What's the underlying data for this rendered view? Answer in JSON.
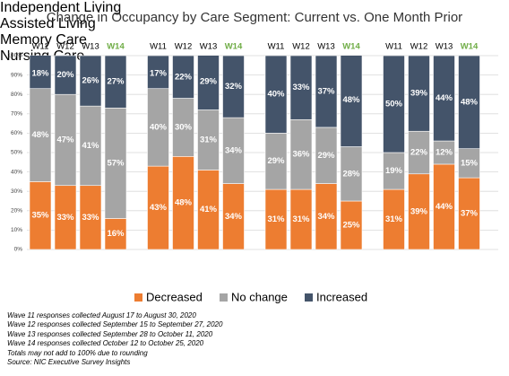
{
  "chart_data": {
    "type": "bar",
    "stacked": true,
    "title": "Change in Occupancy by Care Segment: Current vs. One Month Prior",
    "groups": [
      "Independent Living",
      "Assisted Living",
      "Memory Care",
      "Nursing Care"
    ],
    "categories": [
      "W11",
      "W12",
      "W13",
      "W14",
      "W11",
      "W12",
      "W13",
      "W14",
      "W11",
      "W12",
      "W13",
      "W14",
      "W11",
      "W12",
      "W13",
      "W14"
    ],
    "highlight_category": "W14",
    "highlight_color": "#70ad47",
    "series": [
      {
        "name": "Decreased",
        "color": "#ed7d31",
        "values": [
          35,
          33,
          33,
          16,
          43,
          48,
          41,
          34,
          31,
          31,
          34,
          25,
          31,
          39,
          44,
          37
        ],
        "value_labels": [
          "35%",
          "33%",
          "33%",
          "16%",
          "43%",
          "48%",
          "41%",
          "34%",
          "31%",
          "31%",
          "34%",
          "25%",
          "31%",
          "39%",
          "44%",
          "37%"
        ]
      },
      {
        "name": "No change",
        "color": "#a5a5a5",
        "values": [
          48,
          47,
          41,
          57,
          40,
          30,
          31,
          34,
          29,
          36,
          29,
          28,
          19,
          22,
          12,
          15
        ],
        "value_labels": [
          "48%",
          "47%",
          "41%",
          "57%",
          "40%",
          "30%",
          "31%",
          "34%",
          "29%",
          "36%",
          "29%",
          "28%",
          "19%",
          "22%",
          "12%",
          "15%"
        ]
      },
      {
        "name": "Increased",
        "color": "#44546a",
        "values": [
          18,
          20,
          26,
          27,
          17,
          22,
          29,
          32,
          40,
          33,
          37,
          48,
          50,
          39,
          44,
          48
        ],
        "value_labels": [
          "18%",
          "20%",
          "26%",
          "27%",
          "17%",
          "22%",
          "29%",
          "32%",
          "40%",
          "33%",
          "37%",
          "48%",
          "50%",
          "39%",
          "44%",
          "48%"
        ]
      }
    ],
    "ylim": [
      0,
      100
    ],
    "yticks": [
      {
        "value": 0,
        "label": "0%"
      },
      {
        "value": 10,
        "label": "10%"
      },
      {
        "value": 20,
        "label": "20%"
      },
      {
        "value": 30,
        "label": "30%"
      },
      {
        "value": 40,
        "label": "40%"
      },
      {
        "value": 50,
        "label": "50%"
      },
      {
        "value": 60,
        "label": "60%"
      },
      {
        "value": 70,
        "label": "70%"
      },
      {
        "value": 80,
        "label": "80%"
      },
      {
        "value": 90,
        "label": "90%"
      },
      {
        "value": 100,
        "label": "100%"
      }
    ],
    "grid": true,
    "legend": "bottom",
    "notes": [
      "Wave 11 responses collected August 17 to August 30, 2020",
      "Wave 12 responses collected September 15 to September 27, 2020",
      "Wave 13 responses collected September 28 to October 11, 2020",
      "Wave 14 responses collected October 12 to October 25, 2020",
      "Totals may not add to 100% due to rounding",
      "Source: NIC Executive Survey Insights"
    ]
  }
}
